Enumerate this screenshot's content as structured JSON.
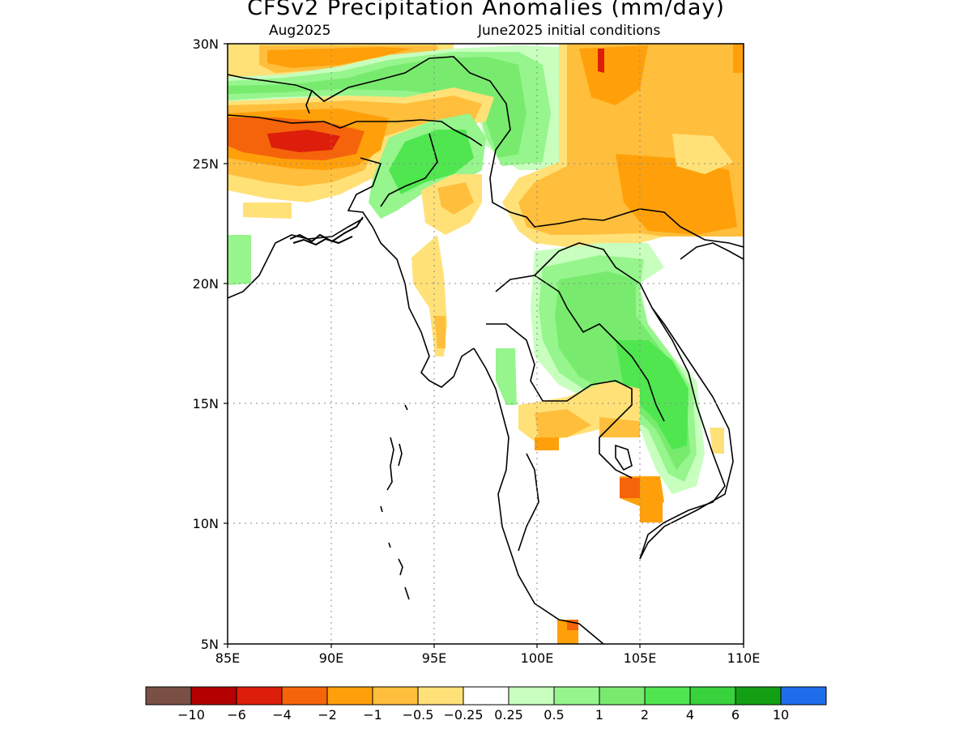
{
  "title": "CFSv2 Precipitation Anomalies (mm/day)",
  "subtitle_left": "Aug2025",
  "subtitle_right": "June2025 initial conditions",
  "x_ticks": [
    "85E",
    "90E",
    "95E",
    "100E",
    "105E",
    "110E"
  ],
  "y_ticks": [
    "30N",
    "25N",
    "20N",
    "15N",
    "10N",
    "5N"
  ],
  "extent": {
    "lon": [
      85,
      110
    ],
    "lat": [
      5,
      30
    ]
  },
  "colorbar": {
    "colors": [
      "#7a5046",
      "#b40000",
      "#dc1e0a",
      "#f5640a",
      "#ffa00a",
      "#ffbe3c",
      "#ffe178",
      "#ffffff",
      "#c8ffbe",
      "#96f58c",
      "#78eb6e",
      "#50e650",
      "#37d23c",
      "#14a014",
      "#1e6eeb"
    ],
    "labels": [
      "−10",
      "−6",
      "−4",
      "−2",
      "−1",
      "−0.5",
      "−0.25",
      "0.25",
      "0.5",
      "1",
      "2",
      "4",
      "6",
      "10"
    ]
  },
  "map_data": {
    "type": "filled-contour-map",
    "variable": "precipitation anomaly (mm/day)",
    "regions": [
      {
        "anomaly": "-0.5 to -0.25",
        "area": "northern edge near 29-30N, 86-92E"
      },
      {
        "anomaly": "-2 to -1",
        "area": "Himalaya belt 28-30N, 86-92E"
      },
      {
        "anomaly": "0.5 to 2",
        "area": "band 27-29N across Tibet/Bhutan"
      },
      {
        "anomaly": "-4 to -1",
        "area": "Nepal/Bihar band 25-27N, 85-92E"
      },
      {
        "anomaly": "1 to 4",
        "area": "Northeast India / Myanmar 23-27N, 92-96E"
      },
      {
        "anomaly": "-1 to -0.25",
        "area": "south-central China 22-30N, 101-110E"
      },
      {
        "anomaly": "1 to 4",
        "area": "Laos / Vietnam 12-21N, 101-107E"
      },
      {
        "anomaly": "0.5 to 2",
        "area": "Myanmar coast 15-17N, 98-99E"
      },
      {
        "anomaly": "-1 to -0.25",
        "area": "Thailand 13-15N, 98-103E"
      },
      {
        "anomaly": "-2",
        "area": "Cambodia 10-12N, 104-105E"
      },
      {
        "anomaly": "-1",
        "area": "Malay peninsula 5-6N, 101-102E"
      }
    ]
  }
}
